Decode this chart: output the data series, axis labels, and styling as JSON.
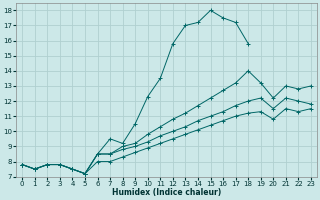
{
  "title": "",
  "xlabel": "Humidex (Indice chaleur)",
  "bg_color": "#cce8e8",
  "grid_color": "#b0d0d0",
  "line_color": "#006666",
  "xlim": [
    -0.5,
    23.5
  ],
  "ylim": [
    7,
    18.5
  ],
  "xticks": [
    0,
    1,
    2,
    3,
    4,
    5,
    6,
    7,
    8,
    9,
    10,
    11,
    12,
    13,
    14,
    15,
    16,
    17,
    18,
    19,
    20,
    21,
    22,
    23
  ],
  "yticks": [
    7,
    8,
    9,
    10,
    11,
    12,
    13,
    14,
    15,
    16,
    17,
    18
  ],
  "series": [
    {
      "x": [
        0,
        1,
        2,
        3,
        4,
        5,
        6,
        7,
        8,
        9,
        10,
        11,
        12,
        13,
        14,
        15,
        16,
        17,
        18
      ],
      "y": [
        7.8,
        7.5,
        7.8,
        7.8,
        7.5,
        7.2,
        8.5,
        9.5,
        9.2,
        10.5,
        12.3,
        13.5,
        15.8,
        17.0,
        17.2,
        18.0,
        17.5,
        17.2,
        15.8
      ]
    },
    {
      "x": [
        0,
        1,
        2,
        3,
        4,
        5,
        6,
        7,
        8,
        9,
        10,
        11,
        12,
        13,
        14,
        15,
        16,
        17,
        18,
        19,
        20,
        21,
        22,
        23
      ],
      "y": [
        7.8,
        7.5,
        7.8,
        7.8,
        7.5,
        7.2,
        8.5,
        8.5,
        9.0,
        9.2,
        9.8,
        10.3,
        10.8,
        11.2,
        11.7,
        12.2,
        12.7,
        13.2,
        14.0,
        13.2,
        12.2,
        13.0,
        12.8,
        13.0
      ]
    },
    {
      "x": [
        0,
        1,
        2,
        3,
        4,
        5,
        6,
        7,
        8,
        9,
        10,
        11,
        12,
        13,
        14,
        15,
        16,
        17,
        18,
        19,
        20,
        21,
        22,
        23
      ],
      "y": [
        7.8,
        7.5,
        7.8,
        7.8,
        7.5,
        7.2,
        8.5,
        8.5,
        8.8,
        9.0,
        9.3,
        9.7,
        10.0,
        10.3,
        10.7,
        11.0,
        11.3,
        11.7,
        12.0,
        12.2,
        11.5,
        12.2,
        12.0,
        11.8
      ]
    },
    {
      "x": [
        0,
        1,
        2,
        3,
        4,
        5,
        6,
        7,
        8,
        9,
        10,
        11,
        12,
        13,
        14,
        15,
        16,
        17,
        18,
        19,
        20,
        21,
        22,
        23
      ],
      "y": [
        7.8,
        7.5,
        7.8,
        7.8,
        7.5,
        7.2,
        8.0,
        8.0,
        8.3,
        8.6,
        8.9,
        9.2,
        9.5,
        9.8,
        10.1,
        10.4,
        10.7,
        11.0,
        11.2,
        11.3,
        10.8,
        11.5,
        11.3,
        11.5
      ]
    }
  ]
}
